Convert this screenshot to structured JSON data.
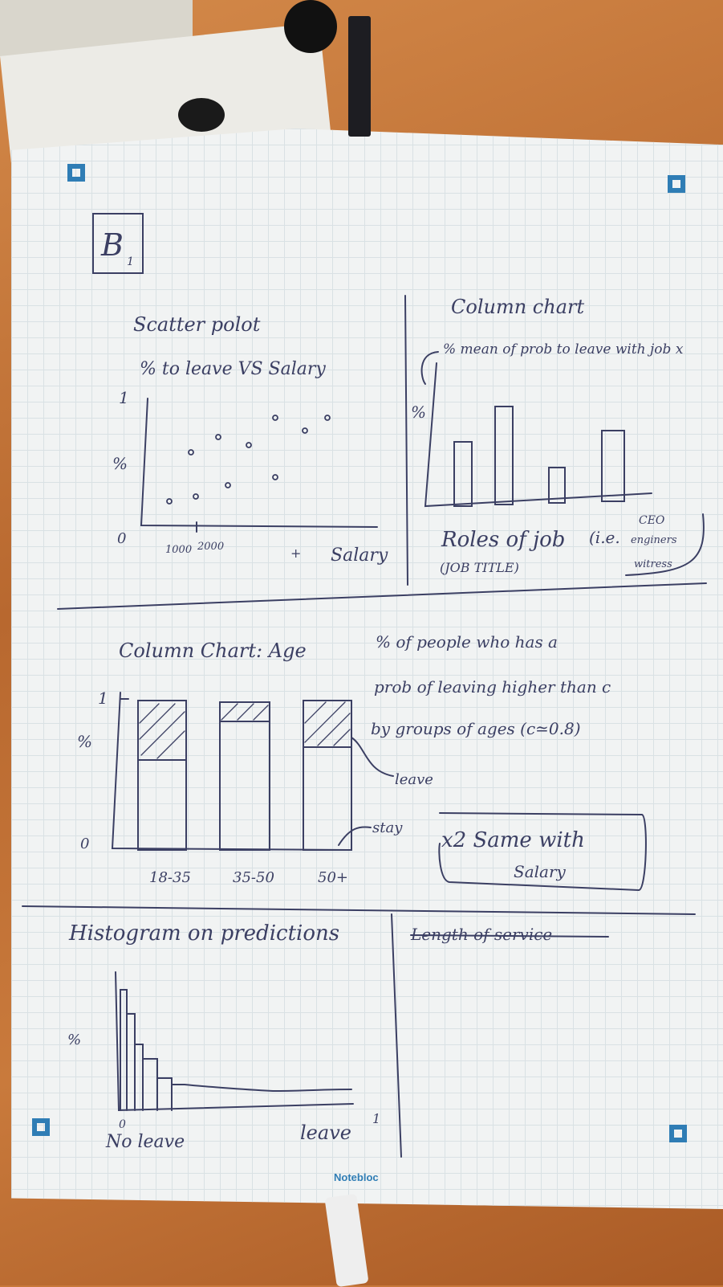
{
  "section_label": "B",
  "section_sub": "1",
  "scatter": {
    "title": "Scatter polot",
    "subtitle": "% to leave VS Salary",
    "y_top": "1",
    "y_mid": "%",
    "y_zero": "0",
    "x_tick1": "1000",
    "x_tick2": "2000",
    "x_label": "Salary"
  },
  "column1": {
    "title": "Column chart",
    "subtitle": "% mean of prob to leave with job x",
    "y_label": "%",
    "x_label": "Roles of job",
    "x_label_paren": "(i.e.",
    "x_sub": "(JOB TITLE)",
    "examples": [
      "CEO",
      "enginers",
      "witress"
    ]
  },
  "column2": {
    "title": "Column Chart: Age",
    "description_lines": [
      "% of people who has a",
      "prob of leaving higher than c",
      "by groups of ages (c≃0.8)"
    ],
    "y_top": "1",
    "y_mid": "%",
    "y_zero": "0",
    "categories": [
      "18-35",
      "35-50",
      "50+"
    ],
    "leave_label": "leave",
    "stay_label": "stay",
    "note": "x2 Same with",
    "note2": "Salary"
  },
  "histogram": {
    "title": "Histogram on predictions",
    "y_label": "%",
    "x_start": "0",
    "x_start_label": "No leave",
    "x_end_label": "leave",
    "x_end": "1",
    "crossed_title": "Length of service"
  },
  "brand": "Notebloc",
  "colors": {
    "ink": "#3b3f63",
    "brand": "#2f7db5"
  }
}
